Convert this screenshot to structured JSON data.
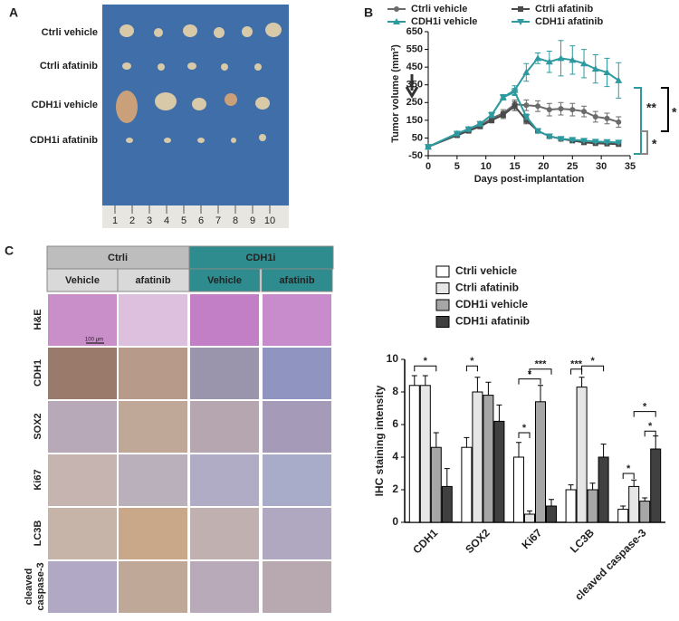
{
  "panel_letters": [
    "A",
    "B",
    "C"
  ],
  "photo": {
    "rows": [
      "Ctrli vehicle",
      "Ctrli afatinib",
      "CDH1i vehicle",
      "CDH1i afatinib"
    ],
    "ruler": [
      "1",
      "2",
      "3",
      "4",
      "5",
      "6",
      "7",
      "8",
      "9",
      "10"
    ]
  },
  "ihc": {
    "groups": [
      "Ctrli",
      "CDH1i"
    ],
    "columns": [
      "Vehicle",
      "afatinib",
      "Vehicle",
      "afatinib"
    ],
    "rows": [
      "H&E",
      "CDH1",
      "SOX2",
      "Ki67",
      "LC3B",
      [
        "cleaved",
        "caspase-3"
      ]
    ],
    "scale_bar": "100 μm"
  },
  "chart_data": [
    {
      "type": "line",
      "x_label": "Days post-implantation",
      "y_label": "Tumor volume (mm³)",
      "x": [
        0,
        5,
        7,
        9,
        11,
        13,
        15,
        17,
        19,
        21,
        23,
        25,
        27,
        29,
        31,
        33
      ],
      "series": [
        {
          "name": "Ctrli vehicle",
          "color": "#6b6b6b",
          "marker": "circle",
          "values": [
            0,
            70,
            95,
            120,
            160,
            190,
            240,
            235,
            230,
            210,
            215,
            210,
            200,
            170,
            160,
            140
          ],
          "errors": [
            0,
            8,
            10,
            12,
            15,
            20,
            25,
            30,
            30,
            35,
            35,
            35,
            30,
            30,
            30,
            30
          ]
        },
        {
          "name": "Ctrli afatinib",
          "color": "#4a4a4a",
          "marker": "square",
          "values": [
            0,
            65,
            90,
            115,
            150,
            180,
            230,
            150,
            90,
            60,
            45,
            35,
            25,
            20,
            18,
            15
          ],
          "errors": [
            0,
            8,
            10,
            12,
            15,
            20,
            25,
            20,
            12,
            10,
            8,
            6,
            5,
            5,
            5,
            5
          ]
        },
        {
          "name": "CDH1i vehicle",
          "color": "#2e9aa0",
          "marker": "triangle",
          "values": [
            0,
            75,
            100,
            130,
            180,
            280,
            320,
            420,
            500,
            480,
            500,
            490,
            470,
            440,
            420,
            375
          ],
          "errors": [
            0,
            8,
            10,
            12,
            15,
            15,
            25,
            50,
            30,
            60,
            100,
            80,
            80,
            80,
            80,
            100
          ]
        },
        {
          "name": "CDH1i afatinib",
          "color": "#2e9aa0",
          "marker": "triangle-down",
          "values": [
            0,
            75,
            100,
            130,
            180,
            280,
            310,
            170,
            90,
            60,
            45,
            40,
            35,
            30,
            28,
            25
          ],
          "errors": [
            0,
            8,
            10,
            12,
            15,
            15,
            20,
            15,
            12,
            10,
            8,
            6,
            5,
            5,
            5,
            5
          ]
        }
      ],
      "xlim": [
        0,
        35
      ],
      "xticks": [
        0,
        5,
        10,
        15,
        20,
        25,
        30,
        35
      ],
      "ylim": [
        -50,
        650
      ],
      "yticks": [
        -50,
        50,
        150,
        250,
        350,
        450,
        550,
        650
      ],
      "annotations": [
        "**",
        "*",
        "*"
      ]
    },
    {
      "type": "bar",
      "y_label": "IHC staining intensity",
      "categories": [
        "CDH1",
        "SOX2",
        "Ki67",
        "LC3B",
        "cleaved caspase-3"
      ],
      "series": [
        {
          "name": "Ctrli vehicle",
          "color": "#ffffff",
          "values": [
            8.4,
            4.6,
            4.0,
            2.0,
            0.8
          ],
          "errors": [
            0.6,
            0.6,
            0.9,
            0.3,
            0.2
          ]
        },
        {
          "name": "Ctrli afatinib",
          "color": "#e6e6e6",
          "values": [
            8.4,
            8.0,
            0.5,
            8.3,
            2.2
          ],
          "errors": [
            0.6,
            0.9,
            0.2,
            0.6,
            0.4
          ]
        },
        {
          "name": "CDH1i vehicle",
          "color": "#a6a6a6",
          "values": [
            4.6,
            7.8,
            7.4,
            2.0,
            1.3
          ],
          "errors": [
            0.9,
            0.8,
            1.0,
            0.4,
            0.2
          ]
        },
        {
          "name": "CDH1i afatinib",
          "color": "#404040",
          "values": [
            2.2,
            6.2,
            1.0,
            4.0,
            4.5
          ],
          "errors": [
            1.1,
            1.0,
            0.4,
            0.8,
            0.8
          ]
        }
      ],
      "ylim": [
        0,
        10
      ],
      "yticks": [
        0,
        2,
        4,
        6,
        8,
        10
      ],
      "annotations": [
        "*",
        "*",
        "*",
        "*",
        "***",
        "***",
        "*",
        "*",
        "*",
        "*"
      ]
    }
  ]
}
